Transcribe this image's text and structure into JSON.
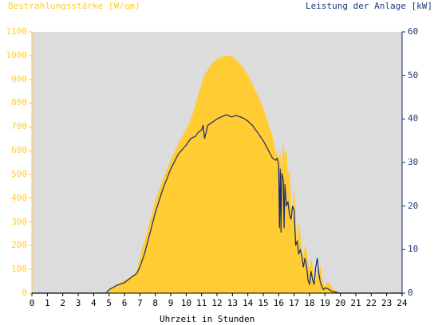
{
  "chart_data": {
    "type": "area",
    "ylabel_left": "Bestrahlungsstärke [W/qm]",
    "ylabel_right": "Leistung der Anlage [kW]",
    "xlabel": "Uhrzeit in Stunden",
    "x_ticks": [
      "0",
      "1",
      "2",
      "3",
      "4",
      "5",
      "6",
      "7",
      "8",
      "9",
      "10",
      "11",
      "12",
      "13",
      "14",
      "15",
      "16",
      "17",
      "18",
      "19",
      "20",
      "21",
      "22",
      "23",
      "24"
    ],
    "y_left_ticks": [
      "0",
      "100",
      "200",
      "300",
      "400",
      "500",
      "600",
      "700",
      "800",
      "900",
      "1000",
      "1100"
    ],
    "y_right_ticks": [
      "0",
      "10",
      "20",
      "30",
      "40",
      "50",
      "60"
    ],
    "xlim": [
      0,
      24
    ],
    "ylim_left": [
      0,
      1100
    ],
    "ylim_right": [
      0,
      60
    ],
    "grid": false,
    "colors": {
      "irradiance": "#ffcc33",
      "power": "#1a2a6c",
      "plot_bg": "#dcdcdc",
      "left_axis_text": "#ffcc33",
      "right_axis_text": "#1a3a7a"
    },
    "series": [
      {
        "axis": "left",
        "type": "area",
        "x": [
          0,
          4.8,
          5.0,
          5.5,
          6.0,
          6.5,
          6.8,
          7.0,
          7.3,
          7.6,
          8.0,
          8.5,
          9.0,
          9.5,
          10.0,
          10.3,
          10.6,
          10.8,
          11.0,
          11.2,
          11.5,
          11.8,
          12.0,
          12.3,
          12.6,
          12.9,
          13.2,
          13.5,
          13.8,
          14.0,
          14.3,
          14.6,
          15.0,
          15.3,
          15.6,
          15.8,
          15.9,
          16.0,
          16.1,
          16.2,
          16.3,
          16.4,
          16.5,
          16.6,
          16.7,
          16.8,
          16.9,
          17.0,
          17.1,
          17.2,
          17.3,
          17.4,
          17.5,
          17.6,
          17.7,
          17.8,
          17.9,
          18.0,
          18.1,
          18.2,
          18.3,
          18.4,
          18.5,
          18.6,
          18.7,
          18.8,
          18.9,
          19.0,
          19.1,
          19.2,
          19.3,
          19.4,
          19.5,
          19.7,
          19.9,
          20.0,
          20.1,
          24
        ],
        "y": [
          0,
          0,
          15,
          35,
          55,
          70,
          95,
          150,
          220,
          290,
          390,
          480,
          560,
          630,
          690,
          730,
          790,
          840,
          880,
          920,
          950,
          975,
          985,
          995,
          1000,
          998,
          985,
          965,
          940,
          920,
          880,
          840,
          780,
          720,
          660,
          600,
          580,
          570,
          600,
          520,
          640,
          580,
          600,
          500,
          530,
          380,
          300,
          450,
          350,
          200,
          300,
          250,
          180,
          150,
          200,
          190,
          120,
          100,
          150,
          110,
          60,
          50,
          100,
          90,
          120,
          70,
          40,
          30,
          40,
          50,
          40,
          30,
          20,
          10,
          5,
          0,
          0,
          0
        ]
      },
      {
        "axis": "right",
        "type": "line",
        "x": [
          0,
          4.8,
          5.0,
          5.5,
          6.0,
          6.5,
          6.8,
          7.0,
          7.3,
          7.6,
          8.0,
          8.5,
          9.0,
          9.5,
          10.0,
          10.3,
          10.6,
          10.8,
          11.0,
          11.1,
          11.2,
          11.4,
          11.6,
          11.8,
          12.0,
          12.3,
          12.6,
          12.9,
          13.0,
          13.2,
          13.5,
          13.8,
          14.0,
          14.3,
          14.6,
          15.0,
          15.3,
          15.6,
          15.8,
          15.9,
          16.0,
          16.05,
          16.1,
          16.15,
          16.2,
          16.3,
          16.35,
          16.4,
          16.5,
          16.6,
          16.7,
          16.8,
          16.9,
          17.0,
          17.1,
          17.2,
          17.3,
          17.4,
          17.5,
          17.6,
          17.7,
          17.8,
          17.9,
          18.0,
          18.1,
          18.2,
          18.3,
          18.4,
          18.5,
          18.6,
          18.7,
          18.8,
          18.9,
          19.0,
          19.2,
          19.4,
          19.6,
          19.8,
          20.0,
          24
        ],
        "y": [
          0,
          0,
          0.8,
          1.8,
          2.4,
          3.8,
          4.5,
          6.0,
          9.0,
          13.0,
          18.5,
          24.0,
          28.5,
          32.0,
          34.0,
          35.5,
          36.0,
          37.0,
          37.5,
          38.5,
          35.5,
          38.5,
          39.0,
          39.5,
          40.0,
          40.5,
          41.0,
          40.5,
          40.5,
          40.8,
          40.5,
          40.0,
          39.5,
          38.5,
          37.0,
          35.0,
          33.0,
          31.0,
          30.5,
          31.0,
          29.5,
          15.0,
          28.5,
          14.0,
          27.5,
          26.0,
          15.0,
          25.0,
          20.0,
          21.0,
          18.0,
          17.0,
          20.0,
          19.0,
          11.0,
          12.0,
          9.0,
          10.0,
          8.5,
          6.0,
          8.0,
          6.5,
          3.0,
          2.0,
          5.0,
          3.0,
          2.0,
          6.0,
          8.0,
          4.5,
          2.5,
          1.5,
          0.8,
          1.2,
          1.0,
          0.5,
          0.3,
          0.1,
          0,
          0
        ]
      }
    ]
  }
}
